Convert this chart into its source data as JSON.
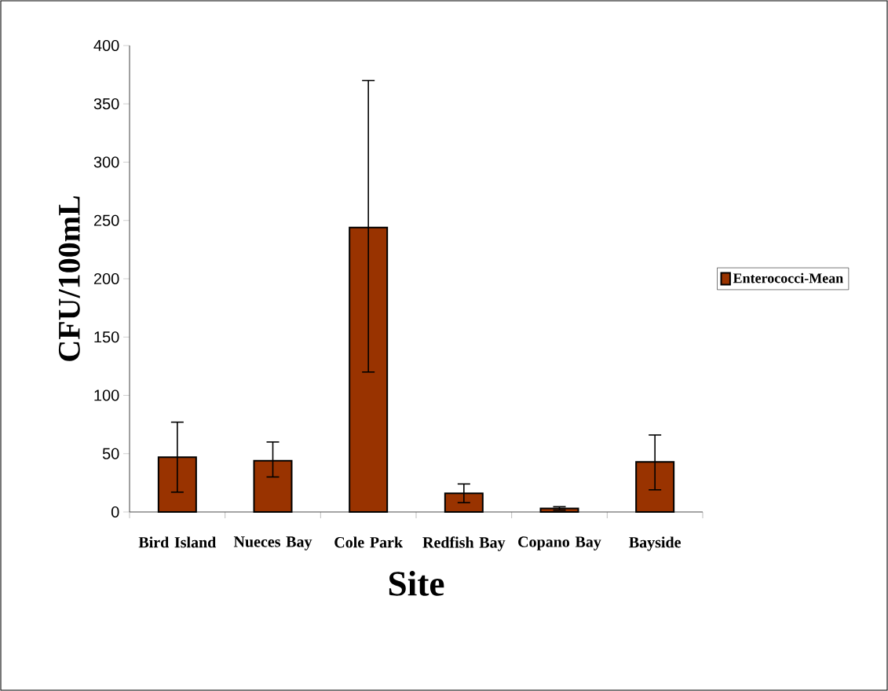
{
  "chart_data": {
    "type": "bar",
    "xlabel": "Site",
    "ylabel": "CFU/100mL",
    "categories": [
      "Bird Island",
      "Nueces Bay",
      "Cole Park",
      "Redfish Bay",
      "Copano Bay",
      "Bayside"
    ],
    "series": [
      {
        "name": "Enterococci-Mean",
        "color": "#993300",
        "values": [
          47,
          44,
          244,
          16,
          3,
          43
        ],
        "errors": [
          [
            17,
            77
          ],
          [
            30,
            60
          ],
          [
            120,
            370
          ],
          [
            8,
            24
          ],
          [
            1.5,
            4.5
          ],
          [
            19,
            66
          ]
        ]
      }
    ],
    "ylim": [
      0,
      400
    ],
    "yticks": [
      0,
      50,
      100,
      150,
      200,
      250,
      300,
      350,
      400
    ],
    "grid": false,
    "legend": "right"
  }
}
